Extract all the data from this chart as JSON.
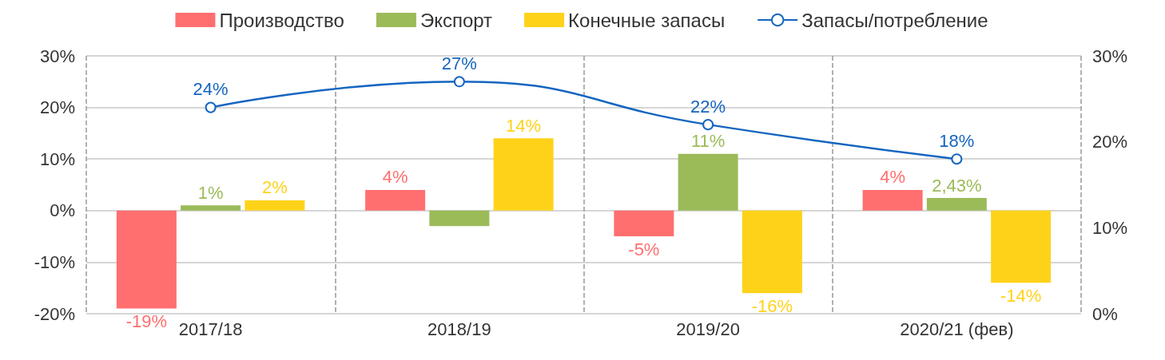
{
  "chart_data": {
    "type": "bar",
    "categories": [
      "2017/18",
      "2018/19",
      "2019/20",
      "2020/21 (фев)"
    ],
    "series": [
      {
        "name": "Производство",
        "color": "#ff6f6f",
        "values": [
          -19,
          4,
          -5,
          4
        ],
        "value_labels": [
          "-19%",
          "4%",
          "-5%",
          "4%"
        ]
      },
      {
        "name": "Экспорт",
        "color": "#9bbb59",
        "values": [
          1,
          -3,
          11,
          2.43
        ],
        "value_labels": [
          "1%",
          null,
          "11%",
          "2,43%"
        ]
      },
      {
        "name": "Конечные запасы",
        "color": "#ffd21a",
        "values": [
          2,
          14,
          -16,
          -14
        ],
        "value_labels": [
          "2%",
          "14%",
          "-16%",
          "-14%"
        ]
      },
      {
        "name": "Запасы/потребление",
        "type": "line",
        "axis": "y2",
        "color": "#1565c0",
        "values": [
          24,
          27,
          22,
          18
        ],
        "value_labels": [
          "24%",
          "27%",
          "22%",
          "18%"
        ]
      }
    ],
    "ylim": [
      -20,
      30
    ],
    "yticks": [
      {
        "value": -20,
        "label": "-20%"
      },
      {
        "value": -10,
        "label": "-10%"
      },
      {
        "value": 0,
        "label": "0%"
      },
      {
        "value": 10,
        "label": "10%"
      },
      {
        "value": 20,
        "label": "20%"
      },
      {
        "value": 30,
        "label": "30%"
      }
    ],
    "y2lim": [
      0,
      30
    ],
    "y2ticks": [
      {
        "value": 0,
        "label": "0%"
      },
      {
        "value": 10,
        "label": "10%"
      },
      {
        "value": 20,
        "label": "20%"
      },
      {
        "value": 30,
        "label": "30%"
      }
    ],
    "grid": true,
    "legend": "top",
    "marker": "circle"
  }
}
